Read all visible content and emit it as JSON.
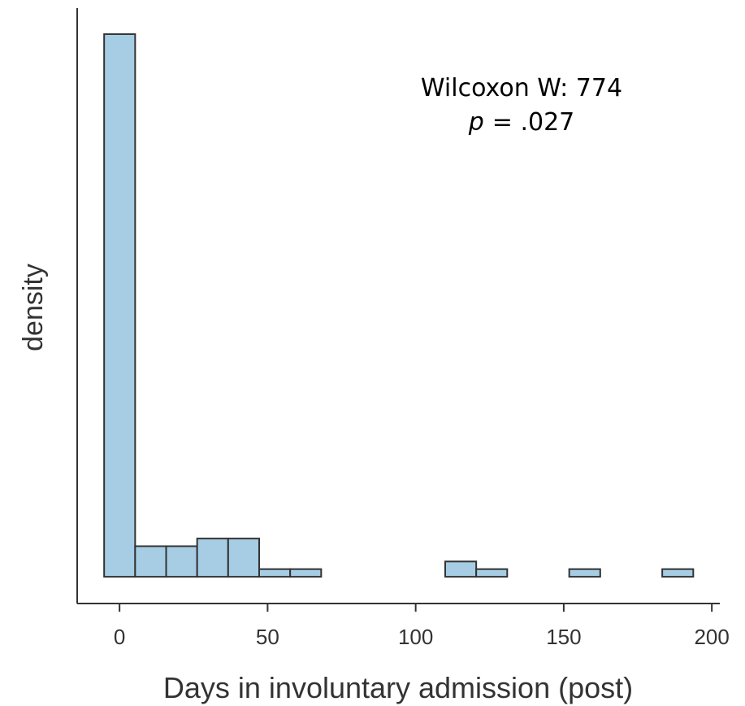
{
  "chart_data": {
    "type": "histogram",
    "xlabel": "Days in involuntary admission (post)",
    "ylabel": "density",
    "annotation": {
      "line1": "Wilcoxon W: 774",
      "p_symbol": "p",
      "p_text": "= .027"
    },
    "bins": [
      -5.2,
      5.27,
      15.74,
      26.21,
      36.68,
      47.15,
      57.62,
      68.09,
      78.56,
      89.03,
      99.5,
      109.97,
      120.44,
      130.91,
      141.38,
      151.85,
      162.32,
      172.79,
      183.26,
      193.73
    ],
    "values": [
      0.071,
      0.004,
      0.004,
      0.005,
      0.005,
      0.001,
      0.001,
      0,
      0,
      0,
      0,
      0.002,
      0.001,
      0,
      0,
      0.001,
      0,
      0,
      0.001
    ],
    "color": "#a6cde4",
    "xlim": [
      -14.3,
      202.7
    ],
    "xticks": [
      0,
      50,
      100,
      150,
      200
    ],
    "ylim": [
      -0.0035,
      0.0744
    ]
  }
}
